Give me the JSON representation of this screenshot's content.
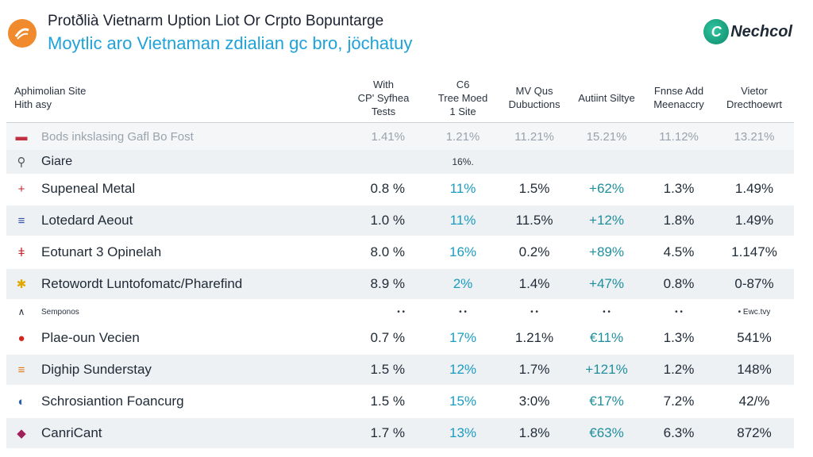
{
  "header": {
    "title": "Protðlià Vietnarm Uption Liot Or Crpto Bopuntarge",
    "subtitle": "Moytlic aro Vietnaman zdialian gc bro, jöchatuy",
    "brand": "Nechcol"
  },
  "columns": [
    {
      "line1": "Aphimolian Site",
      "line2": "Hith asy"
    },
    {
      "line1": "With",
      "line2": "CP' Syfhea",
      "line3": "Tests"
    },
    {
      "line1": "C6",
      "line2": "Tree Moed",
      "line3": "1 Site"
    },
    {
      "line1": "MV Qus",
      "line2": "Dubuctions"
    },
    {
      "line1": "Autiint Siltye"
    },
    {
      "line1": "Fnnse Add",
      "line2": "Meenaccry"
    },
    {
      "line1": "Vietor",
      "line2": "Drecthoewrt"
    }
  ],
  "faint_row": {
    "label": "Bods inkslasing Gafl Bo Fost",
    "values": [
      "1.41%",
      "1.21%",
      "11.21%",
      "15.21%",
      "11.12%",
      "13.21%"
    ]
  },
  "group_row": {
    "label": "Giare",
    "value": "16%."
  },
  "rows_a": [
    {
      "icon": "plus-icon",
      "glyph": "+",
      "color": "#c0282e",
      "name": "Supeneal Metal",
      "values": [
        "0.8 %",
        "11%",
        "1.5%",
        "+62%",
        "1.3%",
        "1.49%"
      ]
    },
    {
      "icon": "flag-icon",
      "glyph": "≡",
      "color": "#2f4fa8",
      "name": "Lotedard Aeout",
      "values": [
        "1.0 %",
        "11%",
        "11.5%",
        "+12%",
        "1.8%",
        "1.49%"
      ]
    },
    {
      "icon": "pin-icon",
      "glyph": "ǂ",
      "color": "#c0282e",
      "name": "Eotunart 3 Opinelah",
      "values": [
        "8.0 %",
        "16%",
        "0.2%",
        "+89%",
        "4.5%",
        "1.147%"
      ]
    },
    {
      "icon": "star-icon",
      "glyph": "✱",
      "color": "#e0a800",
      "name": "Retowordt Luntofomatc/Pharefind",
      "values": [
        "8.9 %",
        "2%",
        "1.4%",
        "+47%",
        "0.8%",
        "0-87%"
      ]
    }
  ],
  "mini_row": {
    "label": "Semponos",
    "values": [
      "• •",
      "• •",
      "• •",
      "• •",
      "• •",
      "• Ewc.tvy"
    ]
  },
  "rows_b": [
    {
      "icon": "circle-icon",
      "glyph": "●",
      "color": "#d0281e",
      "name": "Plae-oun Vecien",
      "values": [
        "0.7 %",
        "17%",
        "1.21%",
        "€11%",
        "1.3%",
        "541%"
      ]
    },
    {
      "icon": "flag-icon",
      "glyph": "≡",
      "color": "#e07a1a",
      "name": "Dighip Sunderstay",
      "values": [
        "1.5 %",
        "12%",
        "1.7%",
        "+121%",
        "1.2%",
        "148%"
      ]
    },
    {
      "icon": "globe-icon",
      "glyph": "◐",
      "color": "#2a5fb0",
      "name": "Schrosiantion Foancurg",
      "values": [
        "1.5 %",
        "15%",
        "3:0%",
        "€17%",
        "7.2%",
        "42/%"
      ]
    },
    {
      "icon": "shield-icon",
      "glyph": "◆",
      "color": "#a0205a",
      "name": "CanriCant",
      "values": [
        "1.7 %",
        "13%",
        "1.8%",
        "€63%",
        "6.3%",
        "872%"
      ]
    }
  ]
}
